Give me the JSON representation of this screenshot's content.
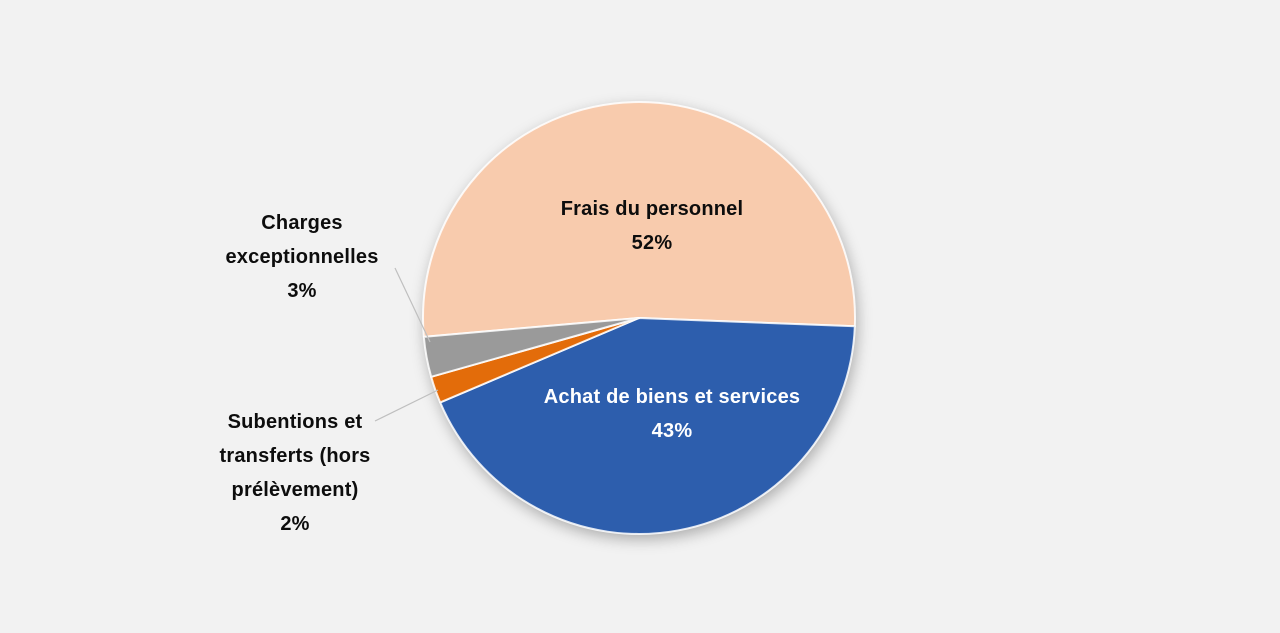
{
  "background_color": "#F2F2F2",
  "chart_data": {
    "type": "pie",
    "title": "",
    "legend": "none",
    "direction": "clockwise",
    "start_angle_deg": 185,
    "slices": [
      {
        "label": "Frais du personnel",
        "value": 52,
        "pct_label": "52%",
        "color": "#F8CBAD",
        "label_position": "inside",
        "text_color": "#0D0D0D"
      },
      {
        "label": "Achat de biens et services",
        "value": 43,
        "pct_label": "43%",
        "color": "#2D5EAD",
        "label_position": "inside",
        "text_color": "#FFFFFF"
      },
      {
        "label": "Subentions et transferts (hors prélèvement)",
        "value": 2,
        "pct_label": "2%",
        "color": "#E36C0A",
        "label_position": "outside",
        "text_color": "#0D0D0D"
      },
      {
        "label": "Charges exceptionnelles",
        "value": 3,
        "pct_label": "3%",
        "color": "#9A9A9A",
        "label_position": "outside",
        "text_color": "#0D0D0D"
      }
    ]
  }
}
